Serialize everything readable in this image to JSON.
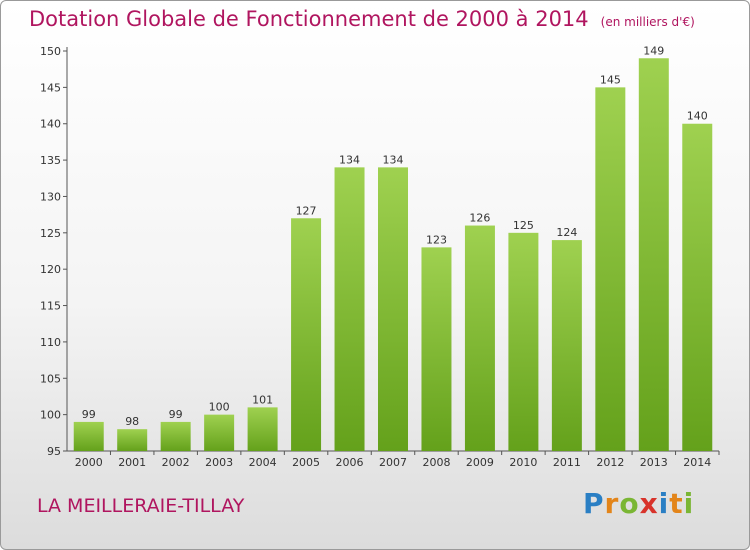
{
  "title": "Dotation Globale de Fonctionnement de 2000 à 2014",
  "unit_note": "(en milliers d'€)",
  "commune": "LA MEILLERAIE-TILLAY",
  "logo": {
    "letters": [
      "P",
      "r",
      "o",
      "x",
      "i",
      "t",
      "i"
    ],
    "colors": [
      "#2a7fc4",
      "#e3851a",
      "#7ab634",
      "#d8332b",
      "#2a7fc4",
      "#e3851a",
      "#7ab634"
    ]
  },
  "chart_data": {
    "type": "bar",
    "categories": [
      "2000",
      "2001",
      "2002",
      "2003",
      "2004",
      "2005",
      "2006",
      "2007",
      "2008",
      "2009",
      "2010",
      "2011",
      "2012",
      "2013",
      "2014"
    ],
    "values": [
      99,
      98,
      99,
      100,
      101,
      127,
      134,
      134,
      123,
      126,
      125,
      124,
      145,
      149,
      140
    ],
    "ylim": [
      95,
      150
    ],
    "yticks": [
      95,
      100,
      105,
      110,
      115,
      120,
      125,
      130,
      135,
      140,
      145,
      150
    ],
    "grid": false,
    "bar_color": "#7ab634",
    "title": "Dotation Globale de Fonctionnement de 2000 à 2014",
    "xlabel": "",
    "ylabel": ""
  }
}
